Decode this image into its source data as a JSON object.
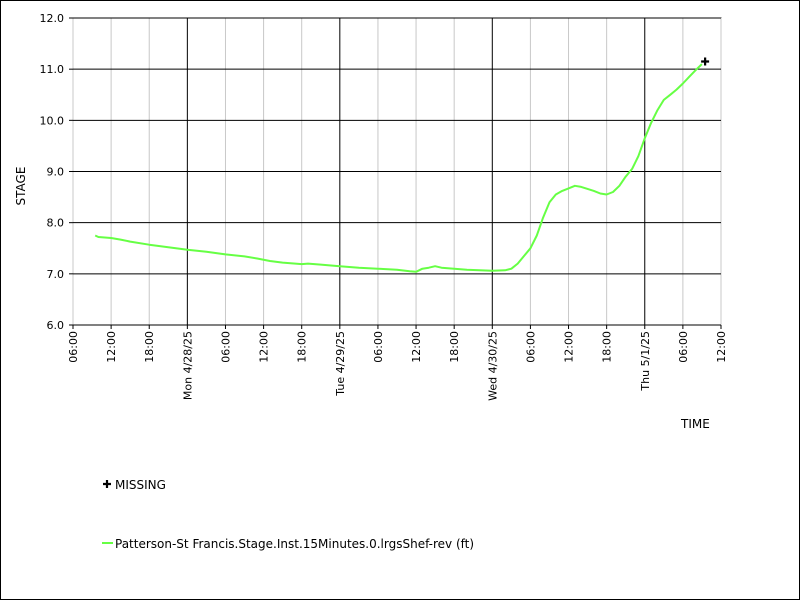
{
  "chart_data": {
    "type": "line",
    "xlabel": "TIME",
    "ylabel": "STAGE",
    "ylim": [
      6.0,
      12.0
    ],
    "y_ticks": [
      "6.0",
      "7.0",
      "8.0",
      "9.0",
      "10.0",
      "11.0",
      "12.0"
    ],
    "xlim_hours": [
      0,
      102
    ],
    "x_ticks": [
      {
        "h": 0,
        "label": "06:00",
        "major": false
      },
      {
        "h": 6,
        "label": "12:00",
        "major": false
      },
      {
        "h": 12,
        "label": "18:00",
        "major": false
      },
      {
        "h": 18,
        "label": "Mon 4/28/25",
        "major": true
      },
      {
        "h": 24,
        "label": "06:00",
        "major": false
      },
      {
        "h": 30,
        "label": "12:00",
        "major": false
      },
      {
        "h": 36,
        "label": "18:00",
        "major": false
      },
      {
        "h": 42,
        "label": "Tue 4/29/25",
        "major": true
      },
      {
        "h": 48,
        "label": "06:00",
        "major": false
      },
      {
        "h": 54,
        "label": "12:00",
        "major": false
      },
      {
        "h": 60,
        "label": "18:00",
        "major": false
      },
      {
        "h": 66,
        "label": "Wed 4/30/25",
        "major": true
      },
      {
        "h": 72,
        "label": "06:00",
        "major": false
      },
      {
        "h": 78,
        "label": "12:00",
        "major": false
      },
      {
        "h": 84,
        "label": "18:00",
        "major": false
      },
      {
        "h": 90,
        "label": "Thu 5/1/25",
        "major": true
      },
      {
        "h": 96,
        "label": "06:00",
        "major": false
      },
      {
        "h": 102,
        "label": "12:00",
        "major": false
      }
    ],
    "series": [
      {
        "name": "Patterson-St Francis.Stage.Inst.15Minutes.0.lrgsShef-rev (ft)",
        "color": "#66ff44",
        "points": [
          [
            3.5,
            7.75
          ],
          [
            4,
            7.72
          ],
          [
            6,
            7.7
          ],
          [
            7.5,
            7.67
          ],
          [
            9,
            7.63
          ],
          [
            12,
            7.57
          ],
          [
            15,
            7.52
          ],
          [
            18,
            7.47
          ],
          [
            21,
            7.43
          ],
          [
            24,
            7.38
          ],
          [
            27,
            7.34
          ],
          [
            29,
            7.3
          ],
          [
            31,
            7.25
          ],
          [
            33,
            7.22
          ],
          [
            35,
            7.2
          ],
          [
            36,
            7.19
          ],
          [
            37,
            7.2
          ],
          [
            39,
            7.18
          ],
          [
            42,
            7.15
          ],
          [
            45,
            7.12
          ],
          [
            48,
            7.1
          ],
          [
            51,
            7.08
          ],
          [
            53,
            7.05
          ],
          [
            54,
            7.04
          ],
          [
            55,
            7.1
          ],
          [
            56,
            7.12
          ],
          [
            57,
            7.15
          ],
          [
            58,
            7.12
          ],
          [
            60,
            7.1
          ],
          [
            62,
            7.08
          ],
          [
            64,
            7.07
          ],
          [
            66,
            7.06
          ],
          [
            68,
            7.07
          ],
          [
            69,
            7.1
          ],
          [
            70,
            7.2
          ],
          [
            71,
            7.35
          ],
          [
            72,
            7.5
          ],
          [
            73,
            7.75
          ],
          [
            74,
            8.1
          ],
          [
            75,
            8.4
          ],
          [
            76,
            8.55
          ],
          [
            77,
            8.62
          ],
          [
            78,
            8.67
          ],
          [
            79,
            8.72
          ],
          [
            80,
            8.7
          ],
          [
            81,
            8.66
          ],
          [
            82,
            8.62
          ],
          [
            83,
            8.57
          ],
          [
            84,
            8.55
          ],
          [
            85,
            8.6
          ],
          [
            86,
            8.72
          ],
          [
            87,
            8.9
          ],
          [
            88,
            9.05
          ],
          [
            89,
            9.3
          ],
          [
            90,
            9.65
          ],
          [
            91,
            9.95
          ],
          [
            92,
            10.2
          ],
          [
            93,
            10.4
          ],
          [
            94,
            10.5
          ],
          [
            95,
            10.6
          ],
          [
            96,
            10.72
          ],
          [
            97,
            10.85
          ],
          [
            98,
            10.98
          ],
          [
            99,
            11.1
          ]
        ]
      }
    ],
    "missing_marker": {
      "label": "MISSING",
      "points": [
        [
          99.5,
          11.15
        ]
      ]
    },
    "grid": true,
    "legend_position": "bottom-left"
  }
}
